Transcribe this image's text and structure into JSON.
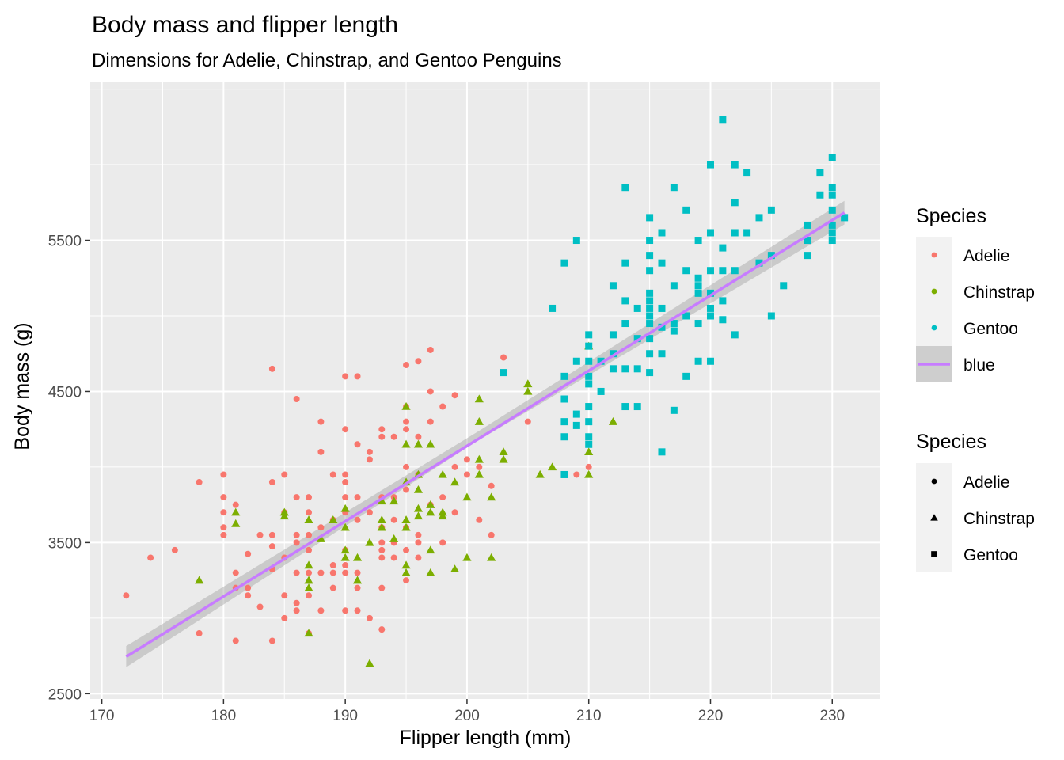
{
  "chart_data": {
    "type": "scatter",
    "title": "Body mass and flipper length",
    "subtitle": "Dimensions for Adelie, Chinstrap, and Gentoo Penguins",
    "xlabel": "Flipper length (mm)",
    "ylabel": "Body mass (g)",
    "xlim": [
      169.05,
      233.95
    ],
    "ylim": [
      2465,
      6545
    ],
    "x_ticks": [
      "170",
      "180",
      "190",
      "200",
      "210",
      "220",
      "230"
    ],
    "y_ticks": [
      "2500",
      "3500",
      "4500",
      "5500"
    ],
    "grid": true,
    "legend_position": "right",
    "colors": {
      "Adelie": "#F8766D",
      "Chinstrap": "#7CAE00",
      "Gentoo": "#00BFC4",
      "smooth": "#C77CFF",
      "band": "#999999",
      "panel": "#EBEBEB"
    },
    "smooth": {
      "method": "lm",
      "x": [
        172,
        231
      ],
      "y": [
        2745,
        5683
      ],
      "se_band": {
        "x": [
          172,
          201,
          231
        ],
        "lower": [
          2675,
          4180,
          5605
        ],
        "upper": [
          2815,
          4240,
          5761
        ]
      }
    },
    "legend_color": {
      "title": "Species",
      "entries": [
        {
          "label": "Adelie",
          "color": "#F8766D"
        },
        {
          "label": "Chinstrap",
          "color": "#7CAE00"
        },
        {
          "label": "Gentoo",
          "color": "#00BFC4"
        },
        {
          "label": "blue",
          "color": "#C77CFF"
        }
      ]
    },
    "legend_shape": {
      "title": "Species",
      "entries": [
        {
          "label": "Adelie",
          "shape": "circle"
        },
        {
          "label": "Chinstrap",
          "shape": "triangle"
        },
        {
          "label": "Gentoo",
          "shape": "square"
        }
      ]
    },
    "series": [
      {
        "name": "Adelie",
        "shape": "circle",
        "color": "#F8766D",
        "points": [
          [
            172,
            3150
          ],
          [
            174,
            3400
          ],
          [
            176,
            3450
          ],
          [
            178,
            3900
          ],
          [
            178,
            2900
          ],
          [
            180,
            3950
          ],
          [
            180,
            3800
          ],
          [
            180,
            3700
          ],
          [
            180,
            3600
          ],
          [
            180,
            3550
          ],
          [
            181,
            2850
          ],
          [
            181,
            3300
          ],
          [
            181,
            3200
          ],
          [
            181,
            3750
          ],
          [
            182,
            3425
          ],
          [
            182,
            3150
          ],
          [
            182,
            3200
          ],
          [
            183,
            3550
          ],
          [
            183,
            3075
          ],
          [
            184,
            4650
          ],
          [
            184,
            3900
          ],
          [
            184,
            3550
          ],
          [
            184,
            3475
          ],
          [
            184,
            3325
          ],
          [
            184,
            2850
          ],
          [
            185,
            3950
          ],
          [
            185,
            3700
          ],
          [
            185,
            3400
          ],
          [
            185,
            3150
          ],
          [
            185,
            3000
          ],
          [
            186,
            4450
          ],
          [
            186,
            3800
          ],
          [
            186,
            3550
          ],
          [
            186,
            3500
          ],
          [
            186,
            3300
          ],
          [
            186,
            3100
          ],
          [
            186,
            3050
          ],
          [
            187,
            3800
          ],
          [
            187,
            3700
          ],
          [
            187,
            3550
          ],
          [
            187,
            3450
          ],
          [
            187,
            3300
          ],
          [
            187,
            3150
          ],
          [
            187,
            2900
          ],
          [
            188,
            4300
          ],
          [
            188,
            4100
          ],
          [
            188,
            3600
          ],
          [
            188,
            3300
          ],
          [
            188,
            3050
          ],
          [
            189,
            3950
          ],
          [
            189,
            3650
          ],
          [
            189,
            3350
          ],
          [
            189,
            3200
          ],
          [
            189,
            3300
          ],
          [
            190,
            4600
          ],
          [
            190,
            4250
          ],
          [
            190,
            3950
          ],
          [
            190,
            3900
          ],
          [
            190,
            3800
          ],
          [
            190,
            3700
          ],
          [
            190,
            3450
          ],
          [
            190,
            3350
          ],
          [
            190,
            3050
          ],
          [
            190,
            3300
          ],
          [
            191,
            4600
          ],
          [
            191,
            4150
          ],
          [
            191,
            3800
          ],
          [
            191,
            3650
          ],
          [
            191,
            3300
          ],
          [
            191,
            3200
          ],
          [
            191,
            3050
          ],
          [
            192,
            4100
          ],
          [
            192,
            4050
          ],
          [
            192,
            3700
          ],
          [
            192,
            3000
          ],
          [
            193,
            4250
          ],
          [
            193,
            4200
          ],
          [
            193,
            3800
          ],
          [
            193,
            3600
          ],
          [
            193,
            3500
          ],
          [
            193,
            3450
          ],
          [
            193,
            3400
          ],
          [
            193,
            3200
          ],
          [
            193,
            2925
          ],
          [
            194,
            4200
          ],
          [
            194,
            3800
          ],
          [
            194,
            3650
          ],
          [
            194,
            3500
          ],
          [
            194,
            3400
          ],
          [
            195,
            4675
          ],
          [
            195,
            4400
          ],
          [
            195,
            4300
          ],
          [
            195,
            4250
          ],
          [
            195,
            4000
          ],
          [
            195,
            3850
          ],
          [
            195,
            3600
          ],
          [
            195,
            3450
          ],
          [
            195,
            3250
          ],
          [
            196,
            4700
          ],
          [
            196,
            4200
          ],
          [
            196,
            3950
          ],
          [
            196,
            3550
          ],
          [
            196,
            3500
          ],
          [
            196,
            3400
          ],
          [
            197,
            4775
          ],
          [
            197,
            4500
          ],
          [
            197,
            4300
          ],
          [
            197,
            3750
          ],
          [
            198,
            4400
          ],
          [
            198,
            3800
          ],
          [
            198,
            3500
          ],
          [
            199,
            4475
          ],
          [
            199,
            4000
          ],
          [
            199,
            3700
          ],
          [
            200,
            4050
          ],
          [
            200,
            3950
          ],
          [
            201,
            4000
          ],
          [
            201,
            3650
          ],
          [
            202,
            3875
          ],
          [
            202,
            3550
          ],
          [
            203,
            4725
          ],
          [
            205,
            4300
          ],
          [
            210,
            4000
          ],
          [
            209,
            3950
          ]
        ]
      },
      {
        "name": "Chinstrap",
        "shape": "triangle",
        "color": "#7CAE00",
        "points": [
          [
            178,
            3250
          ],
          [
            181,
            3700
          ],
          [
            181,
            3625
          ],
          [
            185,
            3700
          ],
          [
            185,
            3675
          ],
          [
            187,
            3650
          ],
          [
            187,
            3350
          ],
          [
            187,
            3250
          ],
          [
            187,
            3200
          ],
          [
            187,
            2900
          ],
          [
            188,
            3525
          ],
          [
            189,
            3650
          ],
          [
            190,
            3725
          ],
          [
            190,
            3600
          ],
          [
            190,
            3450
          ],
          [
            190,
            3400
          ],
          [
            191,
            3400
          ],
          [
            191,
            3250
          ],
          [
            192,
            3500
          ],
          [
            192,
            2700
          ],
          [
            193,
            3650
          ],
          [
            193,
            3600
          ],
          [
            193,
            3775
          ],
          [
            194,
            3775
          ],
          [
            194,
            3525
          ],
          [
            195,
            4400
          ],
          [
            195,
            4150
          ],
          [
            195,
            3900
          ],
          [
            195,
            3650
          ],
          [
            195,
            3600
          ],
          [
            195,
            3350
          ],
          [
            195,
            3300
          ],
          [
            196,
            4150
          ],
          [
            196,
            3950
          ],
          [
            196,
            3850
          ],
          [
            196,
            3725
          ],
          [
            196,
            3675
          ],
          [
            197,
            4150
          ],
          [
            197,
            3750
          ],
          [
            197,
            3700
          ],
          [
            197,
            3450
          ],
          [
            197,
            3300
          ],
          [
            198,
            3950
          ],
          [
            198,
            3700
          ],
          [
            198,
            3675
          ],
          [
            199,
            3900
          ],
          [
            199,
            3325
          ],
          [
            200,
            3800
          ],
          [
            200,
            3400
          ],
          [
            201,
            4450
          ],
          [
            201,
            4300
          ],
          [
            201,
            4050
          ],
          [
            201,
            3950
          ],
          [
            202,
            3800
          ],
          [
            202,
            3400
          ],
          [
            203,
            4100
          ],
          [
            203,
            4050
          ],
          [
            205,
            4550
          ],
          [
            205,
            4500
          ],
          [
            206,
            3950
          ],
          [
            207,
            4000
          ],
          [
            210,
            4800
          ],
          [
            210,
            4100
          ],
          [
            210,
            3950
          ],
          [
            212,
            4300
          ]
        ]
      },
      {
        "name": "Gentoo",
        "shape": "square",
        "color": "#00BFC4",
        "points": [
          [
            203,
            4625
          ],
          [
            207,
            5050
          ],
          [
            208,
            5350
          ],
          [
            208,
            4600
          ],
          [
            208,
            4450
          ],
          [
            208,
            4300
          ],
          [
            208,
            4200
          ],
          [
            208,
            3950
          ],
          [
            209,
            5500
          ],
          [
            209,
            4700
          ],
          [
            209,
            4350
          ],
          [
            209,
            4275
          ],
          [
            210,
            4875
          ],
          [
            210,
            4800
          ],
          [
            210,
            4700
          ],
          [
            210,
            4600
          ],
          [
            210,
            4550
          ],
          [
            210,
            4400
          ],
          [
            210,
            4300
          ],
          [
            210,
            4150
          ],
          [
            210,
            4200
          ],
          [
            211,
            4700
          ],
          [
            211,
            4500
          ],
          [
            212,
            5200
          ],
          [
            212,
            4875
          ],
          [
            212,
            4750
          ],
          [
            212,
            4650
          ],
          [
            213,
            5850
          ],
          [
            213,
            5350
          ],
          [
            213,
            5100
          ],
          [
            213,
            4950
          ],
          [
            213,
            4650
          ],
          [
            213,
            4400
          ],
          [
            214,
            5050
          ],
          [
            214,
            4850
          ],
          [
            214,
            4650
          ],
          [
            214,
            4400
          ],
          [
            215,
            5650
          ],
          [
            215,
            5500
          ],
          [
            215,
            5400
          ],
          [
            215,
            5300
          ],
          [
            215,
            5150
          ],
          [
            215,
            5100
          ],
          [
            215,
            5050
          ],
          [
            215,
            5000
          ],
          [
            215,
            4950
          ],
          [
            215,
            4850
          ],
          [
            215,
            4750
          ],
          [
            215,
            4625
          ],
          [
            216,
            5550
          ],
          [
            216,
            5350
          ],
          [
            216,
            5050
          ],
          [
            216,
            4925
          ],
          [
            216,
            4750
          ],
          [
            216,
            4100
          ],
          [
            217,
            5850
          ],
          [
            217,
            5200
          ],
          [
            217,
            4950
          ],
          [
            217,
            4900
          ],
          [
            217,
            4375
          ],
          [
            218,
            5700
          ],
          [
            218,
            5300
          ],
          [
            218,
            5000
          ],
          [
            218,
            4600
          ],
          [
            219,
            5500
          ],
          [
            219,
            5250
          ],
          [
            219,
            5200
          ],
          [
            219,
            5150
          ],
          [
            219,
            4950
          ],
          [
            219,
            4700
          ],
          [
            220,
            6000
          ],
          [
            220,
            5550
          ],
          [
            220,
            5300
          ],
          [
            220,
            5150
          ],
          [
            220,
            5050
          ],
          [
            220,
            5000
          ],
          [
            220,
            4700
          ],
          [
            221,
            6300
          ],
          [
            221,
            5450
          ],
          [
            221,
            5300
          ],
          [
            221,
            5100
          ],
          [
            221,
            4975
          ],
          [
            222,
            6000
          ],
          [
            222,
            5750
          ],
          [
            222,
            5550
          ],
          [
            222,
            5300
          ],
          [
            222,
            4875
          ],
          [
            223,
            5950
          ],
          [
            223,
            5550
          ],
          [
            224,
            5650
          ],
          [
            224,
            5350
          ],
          [
            225,
            5700
          ],
          [
            225,
            5400
          ],
          [
            225,
            5000
          ],
          [
            226,
            5200
          ],
          [
            228,
            5600
          ],
          [
            228,
            5500
          ],
          [
            228,
            5400
          ],
          [
            229,
            5950
          ],
          [
            229,
            5800
          ],
          [
            230,
            6050
          ],
          [
            230,
            5850
          ],
          [
            230,
            5800
          ],
          [
            230,
            5700
          ],
          [
            230,
            5600
          ],
          [
            230,
            5550
          ],
          [
            230,
            5500
          ],
          [
            231,
            5650
          ]
        ]
      }
    ]
  }
}
